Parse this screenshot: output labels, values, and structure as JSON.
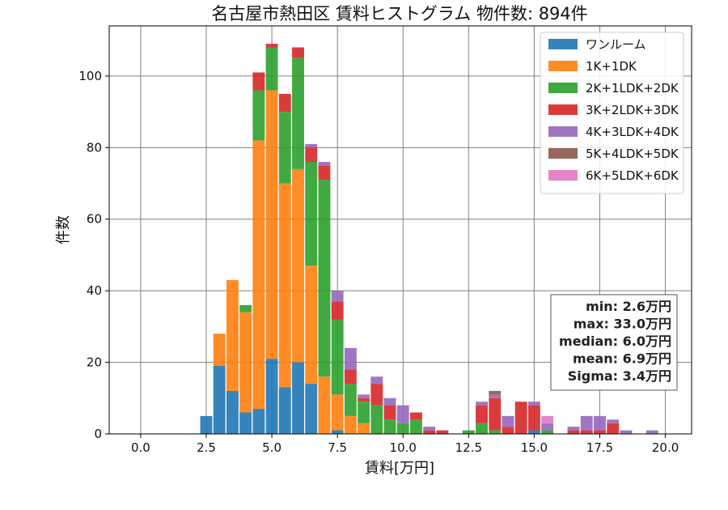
{
  "chart_data": {
    "type": "bar",
    "stacked": true,
    "title": "名古屋市熱田区 賃料ヒストグラム  物件数: 894件",
    "xlabel": "賃料[万円]",
    "ylabel": "件数",
    "xlim": [
      -1.2,
      21.0
    ],
    "ylim": [
      0,
      114
    ],
    "xticks": [
      0,
      2.5,
      5,
      7.5,
      10,
      12.5,
      15,
      17.5,
      20
    ],
    "xtick_labels": [
      "0.0",
      "2.5",
      "5.0",
      "7.5",
      "10.0",
      "12.5",
      "15.0",
      "17.5",
      "20.0"
    ],
    "yticks": [
      0,
      20,
      40,
      60,
      80,
      100
    ],
    "ytick_labels": [
      "0",
      "20",
      "40",
      "60",
      "80",
      "100"
    ],
    "grid": true,
    "legend_position": "top-right",
    "bin_width": 0.5,
    "bin_starts": [
      2.25,
      2.75,
      3.25,
      3.75,
      4.25,
      4.75,
      5.25,
      5.75,
      6.25,
      6.75,
      7.25,
      7.75,
      8.25,
      8.75,
      9.25,
      9.75,
      10.25,
      10.75,
      11.25,
      12.25,
      12.75,
      13.25,
      13.75,
      14.25,
      14.75,
      15.25,
      16.25,
      16.75,
      17.25,
      17.75,
      18.25,
      19.25
    ],
    "series": [
      {
        "name": "ワンルーム",
        "color": "#1f77b4",
        "values": [
          5,
          19,
          12,
          6,
          7,
          21,
          13,
          20,
          14,
          0,
          1,
          0,
          0,
          0,
          0,
          0,
          0,
          0,
          0,
          0,
          0,
          0,
          0,
          0,
          1,
          0,
          0,
          0,
          0,
          0,
          0,
          0
        ]
      },
      {
        "name": "1K+1DK",
        "color": "#ff7f0e",
        "values": [
          0,
          9,
          31,
          28,
          75,
          75,
          57,
          54,
          33,
          16,
          10,
          5,
          3,
          0,
          0,
          0,
          0,
          0,
          0,
          0,
          0,
          0,
          0,
          0,
          0,
          0,
          0,
          0,
          0,
          0,
          0,
          0
        ]
      },
      {
        "name": "2K+1LDK+2DK",
        "color": "#2ca02c",
        "values": [
          0,
          0,
          0,
          2,
          14,
          12,
          20,
          31,
          29,
          55,
          21,
          9,
          6,
          8,
          4,
          3,
          4,
          0,
          0,
          1,
          3,
          1,
          0,
          0,
          0,
          1,
          0,
          0,
          0,
          0,
          0,
          0
        ]
      },
      {
        "name": "3K+2LDK+3DK",
        "color": "#d62728",
        "values": [
          0,
          0,
          0,
          0,
          5,
          1,
          5,
          3,
          4,
          4,
          5,
          4,
          1,
          6,
          4,
          0,
          2,
          1,
          1,
          0,
          5,
          9,
          2,
          9,
          7,
          0,
          1,
          1,
          1,
          3,
          0,
          0
        ]
      },
      {
        "name": "4K+3LDK+4DK",
        "color": "#9467bd",
        "values": [
          0,
          0,
          0,
          0,
          0,
          0,
          0,
          0,
          1,
          1,
          3,
          6,
          1,
          2,
          2,
          5,
          0,
          1,
          0,
          0,
          1,
          1,
          3,
          0,
          1,
          2,
          1,
          4,
          4,
          1,
          1,
          1
        ]
      },
      {
        "name": "5K+4LDK+5DK",
        "color": "#8c564b",
        "values": [
          0,
          0,
          0,
          0,
          0,
          0,
          0,
          0,
          0,
          0,
          0,
          0,
          0,
          0,
          0,
          0,
          0,
          0,
          0,
          0,
          0,
          1,
          0,
          0,
          0,
          0,
          0,
          0,
          0,
          0,
          0,
          0
        ]
      },
      {
        "name": "6K+5LDK+6DK",
        "color": "#e377c2",
        "values": [
          0,
          0,
          0,
          0,
          0,
          0,
          0,
          0,
          0,
          0,
          0,
          0,
          0,
          0,
          0,
          0,
          0,
          0,
          0,
          0,
          0,
          0,
          0,
          0,
          0,
          2,
          0,
          0,
          0,
          0,
          0,
          0
        ]
      }
    ],
    "annotation": [
      "min: 2.6万円",
      "max: 33.0万円",
      "median: 6.0万円",
      "mean: 6.9万円",
      "Sigma: 3.4万円"
    ]
  }
}
